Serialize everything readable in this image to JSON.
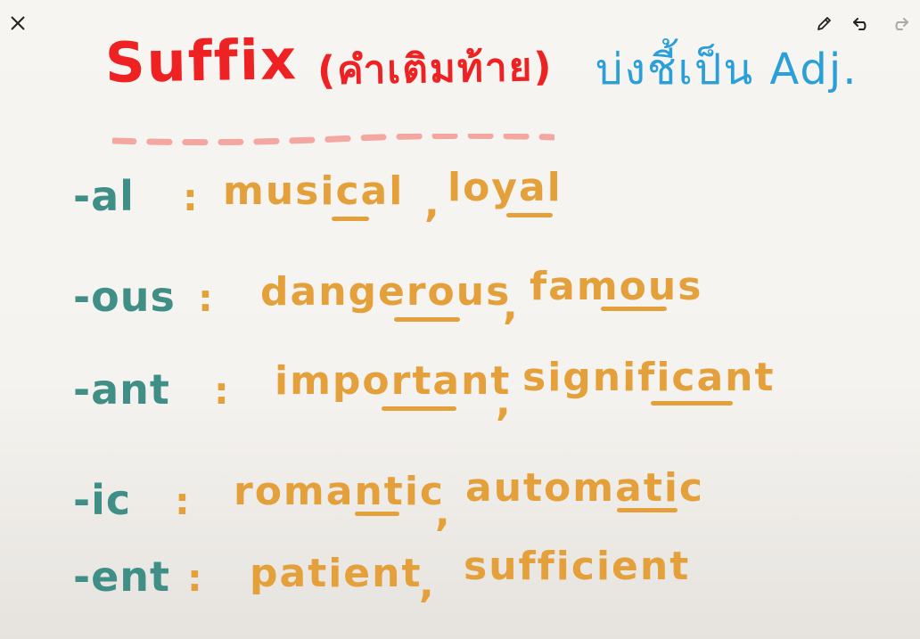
{
  "toolbar": {
    "close_icon": "close-icon",
    "pencil_icon": "pencil-icon",
    "undo_icon": "undo-icon",
    "redo_icon": "redo-icon"
  },
  "title": {
    "suffix": "Suffix",
    "thai_paren": "(คำเติมท้าย)",
    "indicator": "บ่งชี้เป็น Adj."
  },
  "rows": [
    {
      "suffix": "-al",
      "colon": ":",
      "word1": "musical",
      "comma": ",",
      "word2": "loyal"
    },
    {
      "suffix": "-ous",
      "colon": ":",
      "word1": "dangerous",
      "comma": ",",
      "word2": "famous"
    },
    {
      "suffix": "-ant",
      "colon": ":",
      "word1": "important",
      "comma": ",",
      "word2": "significant"
    },
    {
      "suffix": "-ic",
      "colon": ":",
      "word1": "romantic",
      "comma": ",",
      "word2": "automatic"
    },
    {
      "suffix": "-ent",
      "colon": ":",
      "word1": "patient",
      "comma": ",",
      "word2": "sufficient"
    }
  ],
  "colors": {
    "title_red": "#ee2222",
    "title_blue": "#2b9fd8",
    "suffix_teal": "#3f8f87",
    "example_orange": "#e4a03b",
    "dash_pink": "#f4a6a0"
  }
}
